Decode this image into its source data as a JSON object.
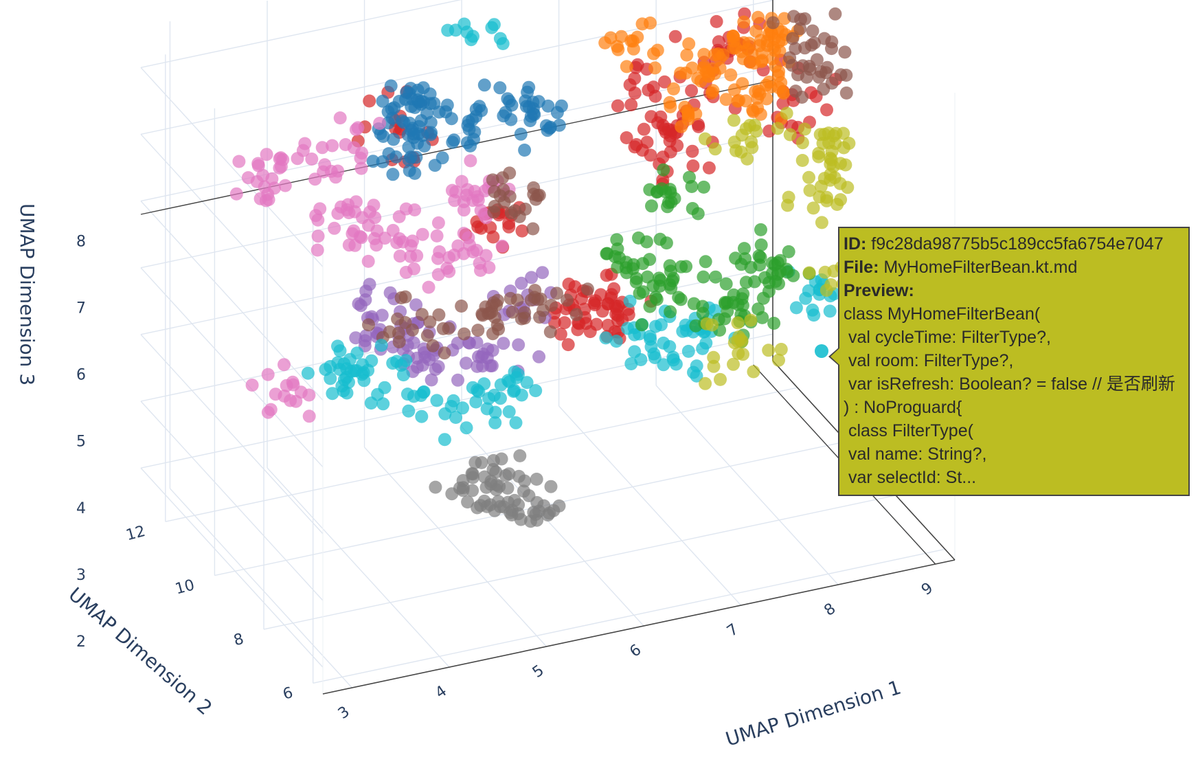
{
  "chart_data": {
    "type": "scatter",
    "dimensions": 3,
    "title": "",
    "xlabel": "UMAP Dimension 1",
    "ylabel": "UMAP Dimension 2",
    "zlabel": "UMAP Dimension 3",
    "x_ticks": [
      "3",
      "4",
      "5",
      "6",
      "7",
      "8",
      "9"
    ],
    "y_ticks": [
      "6",
      "8",
      "10",
      "12"
    ],
    "z_ticks": [
      "2",
      "3",
      "4",
      "5",
      "6",
      "7",
      "8"
    ],
    "xlim": [
      2.7,
      9.2
    ],
    "ylim": [
      5.6,
      13
    ],
    "zlim": [
      1.6,
      8.6
    ],
    "marker_opacity": 0.7,
    "series": [
      {
        "color": "#d62728",
        "points": [
          [
            6.9,
            9.5,
            7.8
          ],
          [
            7.3,
            10.0,
            6.6
          ],
          [
            6.5,
            8.6,
            5.0
          ],
          [
            4.7,
            10.5,
            7.5
          ],
          [
            8.2,
            11.0,
            7.4
          ],
          [
            6.0,
            8.0,
            5.2
          ],
          [
            7.6,
            9.8,
            7.0
          ],
          [
            5.5,
            9.8,
            6.0
          ],
          [
            6.2,
            8.8,
            5.0
          ],
          [
            8.8,
            10.5,
            6.6
          ]
        ]
      },
      {
        "color": "#ff7f0e",
        "points": [
          [
            7.3,
            11.2,
            7.7
          ],
          [
            8.1,
            10.6,
            7.4
          ],
          [
            8.7,
            11.5,
            7.1
          ],
          [
            7.6,
            10.2,
            7.2
          ],
          [
            8.4,
            10.4,
            6.9
          ],
          [
            8.8,
            11.8,
            7.0
          ]
        ]
      },
      {
        "color": "#1f77b4",
        "points": [
          [
            5.1,
            11.6,
            7.2
          ],
          [
            5.6,
            11.0,
            7.1
          ],
          [
            4.8,
            10.8,
            6.9
          ],
          [
            6.1,
            10.4,
            7.3
          ],
          [
            5.3,
            12.0,
            7.0
          ]
        ]
      },
      {
        "color": "#e377c2",
        "points": [
          [
            3.6,
            11.6,
            6.7
          ],
          [
            4.1,
            10.0,
            6.4
          ],
          [
            4.8,
            10.6,
            5.8
          ],
          [
            3.3,
            9.5,
            4.4
          ],
          [
            5.7,
            11.2,
            5.9
          ],
          [
            4.5,
            12.1,
            6.6
          ],
          [
            5.2,
            10.0,
            5.6
          ]
        ]
      },
      {
        "color": "#9467bd",
        "points": [
          [
            4.8,
            9.2,
            4.6
          ],
          [
            5.3,
            9.4,
            4.4
          ],
          [
            4.4,
            9.6,
            4.8
          ],
          [
            5.7,
            9.5,
            4.9
          ],
          [
            4.2,
            9.0,
            5.5
          ]
        ]
      },
      {
        "color": "#8c564b",
        "points": [
          [
            5.3,
            9.5,
            4.9
          ],
          [
            4.5,
            9.2,
            5.2
          ],
          [
            5.9,
            10.5,
            6.1
          ],
          [
            9.0,
            10.5,
            7.6
          ],
          [
            8.8,
            9.8,
            7.3
          ],
          [
            5.8,
            9.0,
            5.1
          ]
        ]
      },
      {
        "color": "#17becf",
        "points": [
          [
            4.0,
            9.0,
            4.6
          ],
          [
            4.6,
            8.8,
            4.1
          ],
          [
            3.6,
            8.5,
            5.0
          ],
          [
            6.7,
            8.3,
            4.6
          ],
          [
            7.4,
            8.7,
            4.2
          ],
          [
            5.3,
            8.4,
            4.2
          ],
          [
            8.6,
            9.0,
            4.3
          ],
          [
            6.0,
            12.2,
            8.2
          ]
        ]
      },
      {
        "color": "#2ca02c",
        "points": [
          [
            7.1,
            8.8,
            5.0
          ],
          [
            7.7,
            8.4,
            4.7
          ],
          [
            8.2,
            9.3,
            4.8
          ],
          [
            6.8,
            9.0,
            5.4
          ],
          [
            7.5,
            10.0,
            5.9
          ],
          [
            8.0,
            9.4,
            4.9
          ]
        ]
      },
      {
        "color": "#bcbd22",
        "points": [
          [
            8.8,
            9.1,
            5.9
          ],
          [
            9.0,
            10.0,
            6.1
          ],
          [
            9.0,
            9.2,
            4.4
          ],
          [
            8.4,
            10.8,
            6.1
          ],
          [
            7.6,
            8.2,
            4.3
          ]
        ]
      },
      {
        "color": "#7f7f7f",
        "points": [
          [
            5.1,
            8.8,
            2.7
          ],
          [
            5.5,
            9.4,
            2.3
          ],
          [
            5.3,
            8.5,
            2.1
          ],
          [
            5.6,
            8.7,
            1.9
          ]
        ]
      }
    ],
    "hover": {
      "color": "#bcbd22",
      "id_label": "ID:",
      "id": "f9c28da98775b5c189cc5fa6754e7047",
      "file_label": "File:",
      "file": "MyHomeFilterBean.kt.md",
      "preview_label": "Preview:",
      "preview_lines": [
        "class MyHomeFilterBean(",
        " val cycleTime: FilterType?,",
        " val room: FilterType?,",
        " var isRefresh: Boolean? = false // 是否刷新",
        ") : NoProguard{",
        " class FilterType(",
        " val name: String?,",
        " var selectId: St..."
      ]
    }
  }
}
